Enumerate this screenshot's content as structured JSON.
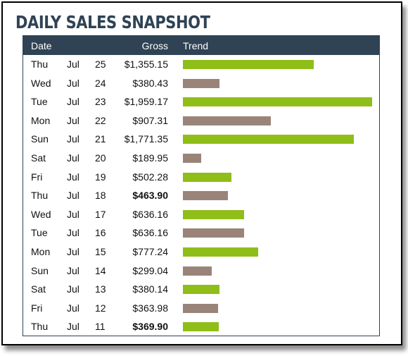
{
  "title": "DAILY SALES SNAPSHOT",
  "colors": {
    "header_bg": "#2f4354",
    "bar_up": "#8fbe19",
    "bar_down": "#9a8479"
  },
  "table": {
    "headers": {
      "date": "Date",
      "gross": "Gross",
      "trend": "Trend"
    }
  },
  "chart_data": {
    "type": "bar",
    "orientation": "horizontal",
    "xlabel": "",
    "ylabel": "",
    "xlim": [
      0,
      1959.17
    ],
    "grid": false,
    "rows": [
      {
        "day": "Thu",
        "month": "Jul",
        "date": "25",
        "gross": "$1,355.15",
        "value": 1355.15,
        "trend": "up",
        "bold": false
      },
      {
        "day": "Wed",
        "month": "Jul",
        "date": "24",
        "gross": "$380.43",
        "value": 380.43,
        "trend": "down",
        "bold": false
      },
      {
        "day": "Tue",
        "month": "Jul",
        "date": "23",
        "gross": "$1,959.17",
        "value": 1959.17,
        "trend": "up",
        "bold": false
      },
      {
        "day": "Mon",
        "month": "Jul",
        "date": "22",
        "gross": "$907.31",
        "value": 907.31,
        "trend": "down",
        "bold": false
      },
      {
        "day": "Sun",
        "month": "Jul",
        "date": "21",
        "gross": "$1,771.35",
        "value": 1771.35,
        "trend": "up",
        "bold": false
      },
      {
        "day": "Sat",
        "month": "Jul",
        "date": "20",
        "gross": "$189.95",
        "value": 189.95,
        "trend": "down",
        "bold": false
      },
      {
        "day": "Fri",
        "month": "Jul",
        "date": "19",
        "gross": "$502.28",
        "value": 502.28,
        "trend": "up",
        "bold": false
      },
      {
        "day": "Thu",
        "month": "Jul",
        "date": "18",
        "gross": "$463.90",
        "value": 463.9,
        "trend": "down",
        "bold": true
      },
      {
        "day": "Wed",
        "month": "Jul",
        "date": "17",
        "gross": "$636.16",
        "value": 636.16,
        "trend": "up",
        "bold": false
      },
      {
        "day": "Tue",
        "month": "Jul",
        "date": "16",
        "gross": "$636.16",
        "value": 636.16,
        "trend": "down",
        "bold": false
      },
      {
        "day": "Mon",
        "month": "Jul",
        "date": "15",
        "gross": "$777.24",
        "value": 777.24,
        "trend": "up",
        "bold": false
      },
      {
        "day": "Sun",
        "month": "Jul",
        "date": "14",
        "gross": "$299.04",
        "value": 299.04,
        "trend": "down",
        "bold": false
      },
      {
        "day": "Sat",
        "month": "Jul",
        "date": "13",
        "gross": "$380.14",
        "value": 380.14,
        "trend": "up",
        "bold": false
      },
      {
        "day": "Fri",
        "month": "Jul",
        "date": "12",
        "gross": "$363.98",
        "value": 363.98,
        "trend": "down",
        "bold": false
      },
      {
        "day": "Thu",
        "month": "Jul",
        "date": "11",
        "gross": "$369.90",
        "value": 369.9,
        "trend": "up",
        "bold": true
      }
    ]
  }
}
